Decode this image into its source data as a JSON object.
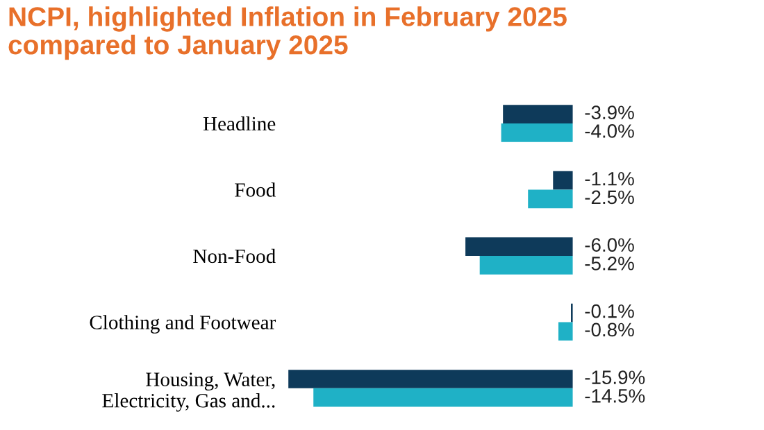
{
  "chart_data": {
    "type": "bar",
    "orientation": "horizontal",
    "title": "NCPI, highlighted Inflation in February 2025\ncompared to January 2025",
    "categories": [
      "Headline",
      "Food",
      "Non-Food",
      "Clothing and Footwear",
      "Housing, Water,\nElectricity, Gas and..."
    ],
    "series": [
      {
        "color": "#0e3a5a",
        "values": [
          -3.9,
          -1.1,
          -6.0,
          -0.1,
          -15.9
        ],
        "value_labels": [
          "-3.9%",
          "-1.1%",
          "-6.0%",
          "-0.1%",
          "-15.9%"
        ]
      },
      {
        "color": "#1fb1c6",
        "values": [
          -4.0,
          -2.5,
          -5.2,
          -0.8,
          -14.5
        ],
        "value_labels": [
          "-4.0%",
          "-2.5%",
          "-5.2%",
          "-0.8%",
          "-14.5%"
        ]
      }
    ],
    "grid": false
  }
}
